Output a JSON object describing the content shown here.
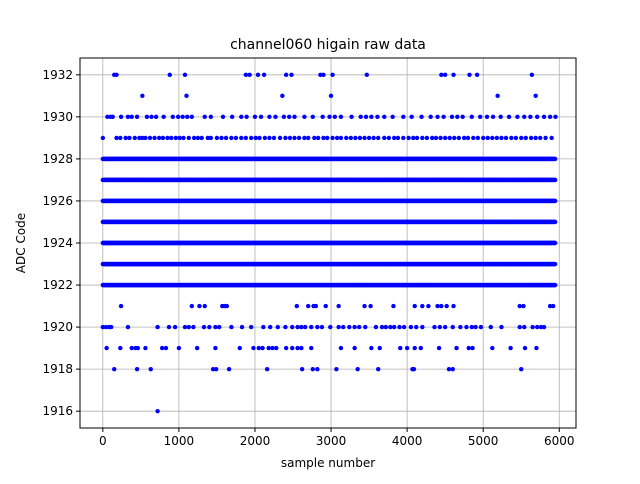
{
  "chart_data": {
    "type": "scatter",
    "title": "channel060 higain raw data",
    "xlabel": "sample number",
    "ylabel": "ADC Code",
    "xlim": [
      -300,
      6220
    ],
    "ylim": [
      1915.2,
      1932.8
    ],
    "xticks": [
      0,
      1000,
      2000,
      3000,
      4000,
      5000,
      6000
    ],
    "yticks": [
      1916,
      1918,
      1920,
      1922,
      1924,
      1926,
      1928,
      1930,
      1932
    ],
    "grid": true,
    "marker_color": "#0000ff",
    "series": [
      {
        "x_range": [
          0,
          5950
        ],
        "dense_levels": [
          1922,
          1923,
          1924,
          1925,
          1926,
          1927,
          1928
        ],
        "sparse_levels": [
          {
            "y": 1929,
            "x": [
              0,
              180,
              230,
              300,
              350,
              420,
              480,
              520,
              560,
              620,
              680,
              740,
              790,
              850,
              900,
              960,
              1010,
              1060,
              1130,
              1200,
              1250,
              1300,
              1380,
              1420,
              1500,
              1560,
              1620,
              1690,
              1750,
              1820,
              1880,
              1950,
              2010,
              2060,
              2130,
              2190,
              2250,
              2330,
              2400,
              2460,
              2520,
              2580,
              2650,
              2700,
              2780,
              2830,
              2900,
              2950,
              3020,
              3080,
              3130,
              3200,
              3260,
              3320,
              3380,
              3440,
              3500,
              3560,
              3620,
              3700,
              3760,
              3830,
              3880,
              3950,
              4020,
              4080,
              4130,
              4200,
              4260,
              4330,
              4380,
              4440,
              4500,
              4560,
              4620,
              4680,
              4750,
              4800,
              4870,
              4930,
              5000,
              5060,
              5120,
              5180,
              5240,
              5300,
              5370,
              5430,
              5500,
              5560,
              5630,
              5690,
              5750,
              5820,
              5900
            ]
          },
          {
            "y": 1930,
            "x": [
              60,
              100,
              130,
              240,
              330,
              380,
              450,
              580,
              640,
              700,
              800,
              920,
              990,
              1050,
              1110,
              1170,
              1340,
              1420,
              1580,
              1700,
              1820,
              1890,
              2000,
              2080,
              2190,
              2270,
              2380,
              2450,
              2520,
              2650,
              2760,
              2890,
              2980,
              3050,
              3130,
              3270,
              3390,
              3460,
              3530,
              3610,
              3700,
              3810,
              3950,
              4060,
              4190,
              4310,
              4400,
              4480,
              4590,
              4660,
              4730,
              4850,
              4960,
              5050,
              5130,
              5230,
              5340,
              5450,
              5540,
              5620,
              5710,
              5800,
              5880,
              5950
            ]
          },
          {
            "y": 1931,
            "x": [
              520,
              1100,
              2360,
              3000,
              5190,
              5690
            ]
          },
          {
            "y": 1932,
            "x": [
              150,
              180,
              880,
              1080,
              1880,
              1930,
              2040,
              2120,
              2410,
              2480,
              2860,
              2900,
              3020,
              3470,
              4450,
              4500,
              4610,
              4820,
              4920,
              5640
            ]
          },
          {
            "y": 1921,
            "x": [
              240,
              1170,
              1270,
              1340,
              1570,
              1600,
              1630,
              2550,
              2700,
              2770,
              2800,
              2930,
              3100,
              3440,
              3520,
              3820,
              4100,
              4200,
              4280,
              4400,
              4450,
              4520,
              4610,
              5480,
              5530,
              5880,
              5920
            ]
          },
          {
            "y": 1920,
            "x": [
              0,
              40,
              80,
              110,
              330,
              720,
              870,
              950,
              1080,
              1130,
              1190,
              1330,
              1400,
              1480,
              1530,
              1690,
              1830,
              1950,
              2110,
              2200,
              2300,
              2400,
              2490,
              2560,
              2610,
              2660,
              2740,
              2820,
              2880,
              2990,
              3100,
              3160,
              3240,
              3310,
              3370,
              3450,
              3590,
              3670,
              3720,
              3780,
              3830,
              3900,
              3960,
              4050,
              4120,
              4200,
              4360,
              4430,
              4500,
              4600,
              4700,
              4780,
              4850,
              4900,
              4970,
              5100,
              5240,
              5480,
              5540,
              5650,
              5710,
              5760,
              5800
            ]
          },
          {
            "y": 1919,
            "x": [
              50,
              230,
              380,
              430,
              460,
              560,
              780,
              830,
              1000,
              1240,
              1480,
              1800,
              1980,
              2050,
              2100,
              2180,
              2230,
              2280,
              2410,
              2490,
              2560,
              2610,
              2740,
              3130,
              3310,
              3530,
              3640,
              3910,
              4000,
              4100,
              4180,
              4420,
              4650,
              4810,
              4860,
              5120,
              5360,
              5550,
              5700
            ]
          },
          {
            "y": 1918,
            "x": [
              150,
              450,
              630,
              1450,
              1490,
              1660,
              2160,
              2620,
              2760,
              2820,
              3070,
              3350,
              3620,
              4070,
              4090,
              4550,
              4600,
              5500
            ]
          },
          {
            "y": 1916,
            "x": [
              720
            ]
          }
        ]
      }
    ]
  }
}
